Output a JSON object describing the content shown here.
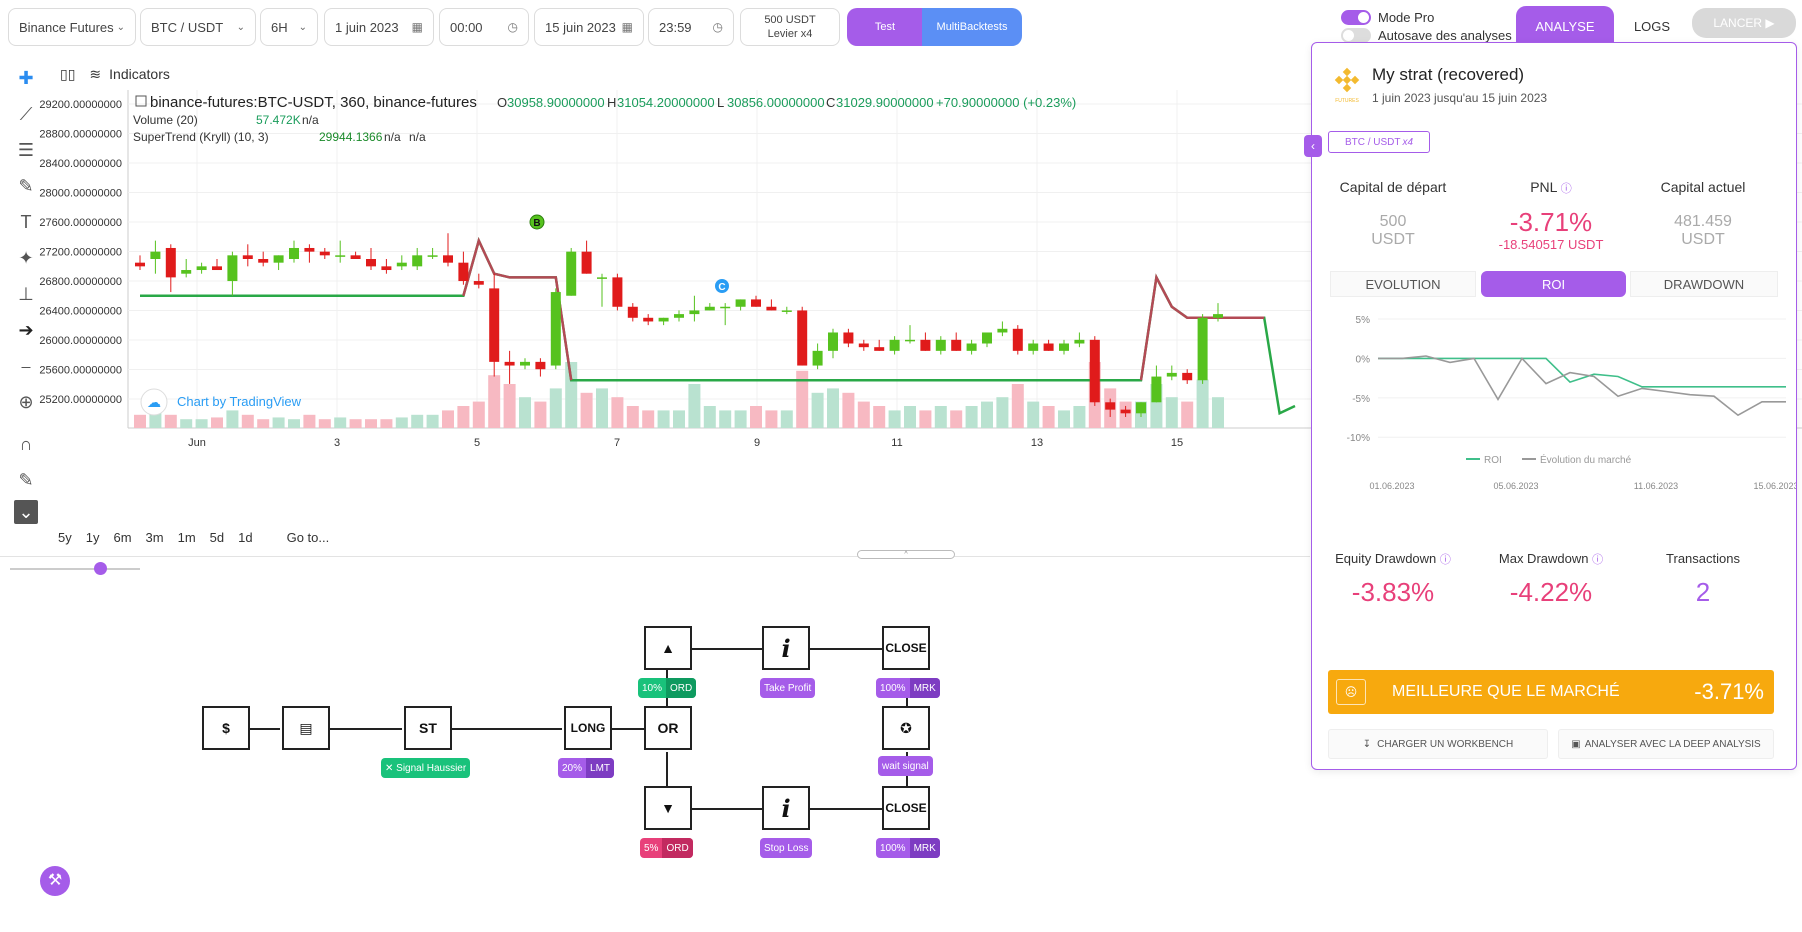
{
  "toolbar": {
    "exchange": "Binance Futures",
    "pair": "BTC / USDT",
    "timeframe": "6H",
    "start_date": "1 juin 2023",
    "start_time": "00:00",
    "end_date": "15 juin 2023",
    "end_time": "23:59",
    "capital": "500 USDT",
    "leverage": "Levier x4",
    "test_label": "Test",
    "multi_label": "MultiBacktests",
    "mode_pro": "Mode Pro",
    "autosave": "Autosave des analyses",
    "tab_analyse": "ANALYSE",
    "tab_logs": "LOGS",
    "lancer": "LANCER"
  },
  "chart": {
    "indicators_label": "Indicators",
    "symbol_title": "binance-futures:BTC-USDT, 360, binance-futures",
    "ohlc": {
      "o_label": "O",
      "o": "30958.90000000",
      "h_label": "H",
      "h": "31054.20000000",
      "l_label": "L",
      "l": "30856.00000000",
      "c_label": "C",
      "c": "31029.90000000",
      "change": "+70.90000000 (+0.23%)"
    },
    "volume_label": "Volume (20)",
    "volume_value": "57.472K",
    "volume_na": "n/a",
    "supertrend_label": "SuperTrend (Kryll) (10, 3)",
    "supertrend_value": "29944.1366",
    "supertrend_na1": "n/a",
    "supertrend_na2": "n/a",
    "watermark": "Chart by TradingView",
    "marker_b": "B",
    "marker_c": "C",
    "price_ticks": [
      "29200.00000000",
      "28800.00000000",
      "28400.00000000",
      "28000.00000000",
      "27600.00000000",
      "27200.00000000",
      "26800.00000000",
      "26400.00000000",
      "26000.00000000",
      "25600.00000000",
      "25200.00000000"
    ],
    "time_ticks": [
      "Jun",
      "3",
      "5",
      "7",
      "9",
      "11",
      "13",
      "15"
    ],
    "ranges": [
      "5y",
      "1y",
      "6m",
      "3m",
      "1m",
      "5d",
      "1d"
    ],
    "goto": "Go to..."
  },
  "chart_data": {
    "type": "candlestick",
    "price_range": [
      24800,
      29400
    ],
    "candles": [
      [
        27050,
        27150,
        26950,
        27000
      ],
      [
        27100,
        27350,
        26900,
        27200
      ],
      [
        27250,
        27300,
        26650,
        26850
      ],
      [
        26900,
        27100,
        26850,
        26950
      ],
      [
        26950,
        27050,
        26900,
        27000
      ],
      [
        27000,
        27100,
        26950,
        26950
      ],
      [
        26800,
        27200,
        26600,
        27150
      ],
      [
        27150,
        27300,
        27000,
        27100
      ],
      [
        27100,
        27200,
        27000,
        27050
      ],
      [
        27050,
        27150,
        26950,
        27150
      ],
      [
        27100,
        27350,
        27050,
        27250
      ],
      [
        27250,
        27300,
        27050,
        27200
      ],
      [
        27200,
        27250,
        27100,
        27150
      ],
      [
        27150,
        27350,
        27050,
        27150
      ],
      [
        27150,
        27200,
        27100,
        27100
      ],
      [
        27100,
        27250,
        26950,
        27000
      ],
      [
        27000,
        27100,
        26900,
        26950
      ],
      [
        27000,
        27150,
        26950,
        27050
      ],
      [
        27000,
        27250,
        26950,
        27150
      ],
      [
        27150,
        27250,
        27100,
        27150
      ],
      [
        27150,
        27450,
        27000,
        27050
      ],
      [
        27050,
        27200,
        26750,
        26800
      ],
      [
        26800,
        26900,
        26700,
        26750
      ],
      [
        26700,
        26900,
        25500,
        25700
      ],
      [
        25700,
        25850,
        25400,
        25650
      ],
      [
        25650,
        25750,
        25600,
        25700
      ],
      [
        25700,
        25750,
        25500,
        25600
      ],
      [
        25650,
        26700,
        25600,
        26650
      ],
      [
        26600,
        27250,
        26600,
        27200
      ],
      [
        27200,
        27350,
        26900,
        26900
      ],
      [
        26850,
        26900,
        26450,
        26850
      ],
      [
        26850,
        26900,
        26400,
        26450
      ],
      [
        26450,
        26500,
        26250,
        26300
      ],
      [
        26300,
        26350,
        26200,
        26250
      ],
      [
        26250,
        26300,
        26200,
        26300
      ],
      [
        26300,
        26400,
        26250,
        26350
      ],
      [
        26350,
        26600,
        26250,
        26400
      ],
      [
        26400,
        26500,
        26400,
        26450
      ],
      [
        26450,
        26500,
        26200,
        26450
      ],
      [
        26450,
        26550,
        26400,
        26550
      ],
      [
        26550,
        26600,
        26450,
        26450
      ],
      [
        26450,
        26550,
        26400,
        26400
      ],
      [
        26400,
        26450,
        26350,
        26400
      ],
      [
        26400,
        26450,
        25650,
        25650
      ],
      [
        25650,
        25950,
        25600,
        25850
      ],
      [
        25850,
        26150,
        25750,
        26100
      ],
      [
        26100,
        26150,
        25900,
        25950
      ],
      [
        25950,
        26000,
        25850,
        25900
      ],
      [
        25900,
        26000,
        25850,
        25850
      ],
      [
        25850,
        26050,
        25800,
        26000
      ],
      [
        26000,
        26200,
        25950,
        26000
      ],
      [
        26000,
        26100,
        25850,
        25850
      ],
      [
        25850,
        26050,
        25800,
        26000
      ],
      [
        26000,
        26100,
        25850,
        25850
      ],
      [
        25850,
        26000,
        25800,
        25950
      ],
      [
        25950,
        26100,
        25900,
        26100
      ],
      [
        26100,
        26250,
        26050,
        26150
      ],
      [
        26150,
        26200,
        25800,
        25850
      ],
      [
        25850,
        26000,
        25800,
        25950
      ],
      [
        25950,
        26000,
        25850,
        25850
      ],
      [
        25850,
        26000,
        25800,
        25950
      ],
      [
        25950,
        26100,
        25900,
        26000
      ],
      [
        26000,
        26050,
        25100,
        25150
      ],
      [
        25150,
        25200,
        24950,
        25050
      ],
      [
        25050,
        25100,
        24950,
        25000
      ],
      [
        25000,
        25150,
        24950,
        25150
      ],
      [
        25150,
        25650,
        25150,
        25500
      ],
      [
        25500,
        25650,
        25450,
        25550
      ],
      [
        25550,
        25600,
        25400,
        25450
      ],
      [
        25450,
        26350,
        25400,
        26300
      ],
      [
        26300,
        26500,
        26250,
        26350
      ]
    ],
    "supertrend": [
      [
        0,
        26600
      ],
      [
        19,
        26600
      ],
      [
        20,
        26600
      ],
      [
        21,
        26600
      ],
      [
        22,
        27350
      ],
      [
        23,
        26900
      ],
      [
        24,
        26850
      ],
      [
        25,
        26850
      ],
      [
        26,
        26850
      ],
      [
        27,
        26850
      ],
      [
        28,
        25450
      ],
      [
        29,
        25450
      ],
      [
        63,
        25450
      ],
      [
        64,
        25450
      ],
      [
        65,
        25450
      ],
      [
        66,
        26850
      ],
      [
        67,
        26450
      ],
      [
        68,
        26300
      ],
      [
        69,
        26300
      ],
      [
        70,
        26300
      ],
      [
        71,
        26300
      ],
      [
        72,
        26300
      ],
      [
        73,
        26300
      ],
      [
        74,
        25000
      ],
      [
        75,
        25100
      ]
    ],
    "supertrend_down_segments": [
      [
        21,
        27
      ]
    ],
    "volume": [
      0.15,
      0.2,
      0.15,
      0.1,
      0.1,
      0.12,
      0.2,
      0.15,
      0.1,
      0.12,
      0.1,
      0.15,
      0.1,
      0.12,
      0.1,
      0.1,
      0.1,
      0.12,
      0.15,
      0.15,
      0.2,
      0.25,
      0.3,
      0.6,
      0.5,
      0.35,
      0.3,
      0.45,
      0.75,
      0.4,
      0.45,
      0.35,
      0.25,
      0.2,
      0.2,
      0.2,
      0.5,
      0.25,
      0.2,
      0.2,
      0.25,
      0.2,
      0.2,
      0.65,
      0.4,
      0.45,
      0.4,
      0.3,
      0.25,
      0.2,
      0.25,
      0.2,
      0.25,
      0.2,
      0.25,
      0.3,
      0.35,
      0.5,
      0.3,
      0.25,
      0.2,
      0.25,
      0.75,
      0.45,
      0.3,
      0.3,
      0.5,
      0.35,
      0.3,
      0.55,
      0.35
    ]
  },
  "workflow": {
    "nodes": [
      {
        "id": "start",
        "label": "$"
      },
      {
        "id": "wallet",
        "label": ""
      },
      {
        "id": "st",
        "label": "ST"
      },
      {
        "id": "long",
        "label": "LONG"
      },
      {
        "id": "or",
        "label": "OR"
      },
      {
        "id": "up",
        "label": ""
      },
      {
        "id": "info1",
        "label": "i"
      },
      {
        "id": "close1",
        "label": "CLOSE"
      },
      {
        "id": "wait",
        "label": ""
      },
      {
        "id": "down",
        "label": ""
      },
      {
        "id": "info2",
        "label": "i"
      },
      {
        "id": "close2",
        "label": "CLOSE"
      }
    ],
    "badges": {
      "signal": "✕ Signal Haussier",
      "long_pct": "20%",
      "long_type": "LMT",
      "up_pct": "10%",
      "up_type": "ORD",
      "take_profit": "Take Profit",
      "close1_pct": "100%",
      "close1_type": "MRK",
      "wait_signal": "wait signal",
      "down_pct": "5%",
      "down_type": "ORD",
      "stop_loss": "Stop Loss",
      "close2_pct": "100%",
      "close2_type": "MRK"
    }
  },
  "panel": {
    "title": "My strat (recovered)",
    "subtitle": "1 juin 2023 jusqu'au 15 juin 2023",
    "logo_text": "FUTURES",
    "pair": "BTC / USDT",
    "pair_lev": "x4",
    "capital_start_label": "Capital de départ",
    "capital_start_value": "500",
    "capital_start_unit": "USDT",
    "pnl_label": "PNL",
    "pnl_pct": "-3.71%",
    "pnl_abs": "-18.540517 USDT",
    "capital_now_label": "Capital actuel",
    "capital_now_value": "481.459",
    "capital_now_unit": "USDT",
    "tabs": [
      "EVOLUTION",
      "ROI",
      "DRAWDOWN"
    ],
    "roi_yticks": [
      "5%",
      "0%",
      "-5%",
      "-10%"
    ],
    "roi_xticks": [
      "01.06.2023",
      "05.06.2023",
      "11.06.2023",
      "15.06.2023"
    ],
    "legend_roi": "ROI",
    "legend_market": "Évolution du marché",
    "equity_dd_label": "Equity Drawdown",
    "equity_dd_value": "-3.83%",
    "max_dd_label": "Max Drawdown",
    "max_dd_value": "-4.22%",
    "transactions_label": "Transactions",
    "transactions_value": "2",
    "banner_text": "MEILLEURE QUE LE MARCHÉ",
    "banner_value": "-3.71%",
    "btn_workbench": "CHARGER UN WORKBENCH",
    "btn_deep": "ANALYSER AVEC LA DEEP ANALYSIS"
  },
  "roi_chart_data": {
    "type": "line",
    "ylim": [
      -12,
      5
    ],
    "series": [
      {
        "name": "ROI",
        "color": "#3fbf8a",
        "values": [
          0,
          0,
          0,
          0,
          0,
          0,
          0,
          0,
          -3,
          -2,
          -2.3,
          -3.6,
          -3.6,
          -3.6,
          -3.6,
          -3.6,
          -3.6,
          -3.6
        ]
      },
      {
        "name": "Évolution du marché",
        "color": "#999999",
        "values": [
          0,
          0,
          0.3,
          -0.5,
          0,
          -5.2,
          0,
          -3.2,
          -1.8,
          -2.3,
          -4.8,
          -3.8,
          -4.2,
          -4.6,
          -4.8,
          -7.2,
          -5.5,
          -5.5
        ]
      }
    ]
  },
  "colors": {
    "accent": "#a55ce9",
    "up": "#56c21e",
    "down": "#e01b1b",
    "pink": "#e8407a",
    "orange": "#f7a90e"
  }
}
